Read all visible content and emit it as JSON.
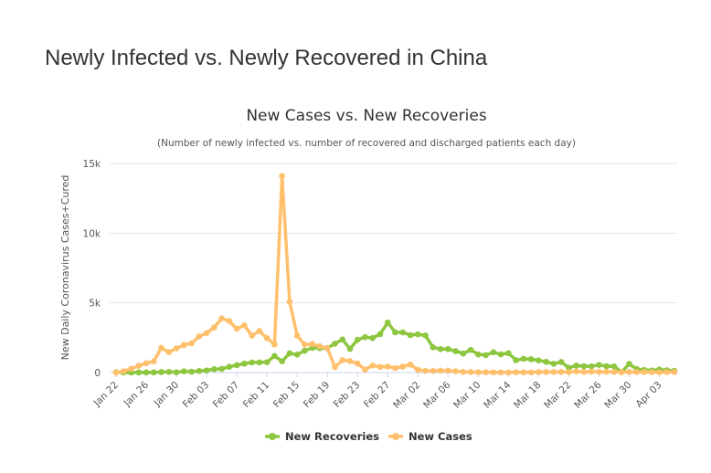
{
  "page": {
    "heading": "Newly Infected vs. Newly Recovered in China"
  },
  "chart_data": {
    "type": "line",
    "title": "New Cases vs. New Recoveries",
    "subtitle": "(Number of newly infected vs. number of recovered and discharged patients each day)",
    "xlabel": "",
    "ylabel": "New Daily Coronavirus Cases+Cured",
    "ylim": [
      0,
      15000
    ],
    "yticks": [
      0,
      5000,
      10000,
      15000
    ],
    "ytick_labels": [
      "0",
      "5k",
      "10k",
      "15k"
    ],
    "grid": true,
    "legend_position": "bottom-center",
    "x": [
      "Jan 22",
      "Jan 23",
      "Jan 24",
      "Jan 25",
      "Jan 26",
      "Jan 27",
      "Jan 28",
      "Jan 29",
      "Jan 30",
      "Jan 31",
      "Feb 01",
      "Feb 02",
      "Feb 03",
      "Feb 04",
      "Feb 05",
      "Feb 06",
      "Feb 07",
      "Feb 08",
      "Feb 09",
      "Feb 10",
      "Feb 11",
      "Feb 12",
      "Feb 13",
      "Feb 14",
      "Feb 15",
      "Feb 16",
      "Feb 17",
      "Feb 18",
      "Feb 19",
      "Feb 20",
      "Feb 21",
      "Feb 22",
      "Feb 23",
      "Feb 24",
      "Feb 25",
      "Feb 26",
      "Feb 27",
      "Feb 28",
      "Feb 29",
      "Mar 01",
      "Mar 02",
      "Mar 03",
      "Mar 04",
      "Mar 05",
      "Mar 06",
      "Mar 07",
      "Mar 08",
      "Mar 09",
      "Mar 10",
      "Mar 11",
      "Mar 12",
      "Mar 13",
      "Mar 14",
      "Mar 15",
      "Mar 16",
      "Mar 17",
      "Mar 18",
      "Mar 19",
      "Mar 20",
      "Mar 21",
      "Mar 22",
      "Mar 23",
      "Mar 24",
      "Mar 25",
      "Mar 26",
      "Mar 27",
      "Mar 28",
      "Mar 29",
      "Mar 30",
      "Mar 31",
      "Apr 01",
      "Apr 02",
      "Apr 03",
      "Apr 04",
      "Apr 05"
    ],
    "xtick_labels": [
      "Jan 22",
      "Jan 26",
      "Jan 30",
      "Feb 03",
      "Feb 07",
      "Feb 11",
      "Feb 15",
      "Feb 19",
      "Feb 23",
      "Feb 27",
      "Mar 02",
      "Mar 06",
      "Mar 10",
      "Mar 14",
      "Mar 18",
      "Mar 22",
      "Mar 26",
      "Mar 30",
      "Apr 03"
    ],
    "series": [
      {
        "name": "New Recoveries",
        "color": "#8dc63f",
        "values": [
          28,
          6,
          3,
          11,
          10,
          12,
          40,
          43,
          21,
          84,
          61,
          115,
          153,
          244,
          266,
          414,
          527,
          640,
          726,
          731,
          745,
          1191,
          807,
          1377,
          1287,
          1570,
          1775,
          1751,
          1761,
          2071,
          2369,
          1702,
          2353,
          2541,
          2478,
          2760,
          3588,
          2886,
          2882,
          2685,
          2743,
          2660,
          1812,
          1682,
          1688,
          1536,
          1361,
          1627,
          1300,
          1251,
          1451,
          1307,
          1392,
          888,
          985,
          955,
          874,
          769,
          631,
          759,
          340,
          496,
          457,
          444,
          555,
          456,
          440,
          40,
          615,
          257,
          192,
          155,
          217,
          159,
          125
        ]
      },
      {
        "name": "New Cases",
        "color": "#ffc06e",
        "values": [
          0,
          95,
          277,
          486,
          669,
          802,
          1773,
          1466,
          1740,
          1980,
          2101,
          2590,
          2829,
          3235,
          3884,
          3694,
          3143,
          3385,
          2652,
          2973,
          2467,
          2015,
          14108,
          5090,
          2641,
          2008,
          2048,
          1886,
          1749,
          391,
          889,
          823,
          648,
          214,
          508,
          406,
          433,
          327,
          427,
          573,
          202,
          125,
          119,
          139,
          143,
          99,
          44,
          40,
          19,
          24,
          15,
          8,
          11,
          20,
          16,
          13,
          34,
          39,
          41,
          46,
          39,
          78,
          47,
          67,
          55,
          54,
          45,
          31,
          48,
          36,
          35,
          31,
          19,
          30,
          39
        ]
      }
    ]
  }
}
